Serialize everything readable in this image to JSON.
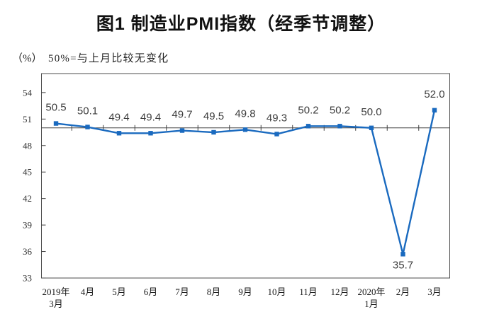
{
  "title": "图1 制造业PMI指数（经季节调整）",
  "unit_label": "（%）",
  "note": "50%=与上月比较无变化",
  "chart_data": {
    "type": "line",
    "title": "图1 制造业PMI指数（经季节调整）",
    "ylabel": "（%）",
    "annotation": "50%=与上月比较无变化",
    "categories": [
      "2019年3月",
      "4月",
      "5月",
      "6月",
      "7月",
      "8月",
      "9月",
      "10月",
      "11月",
      "12月",
      "2020年1月",
      "2月",
      "3月"
    ],
    "category_label_lines": [
      [
        "2019年",
        "3月"
      ],
      [
        "4月"
      ],
      [
        "5月"
      ],
      [
        "6月"
      ],
      [
        "7月"
      ],
      [
        "8月"
      ],
      [
        "9月"
      ],
      [
        "10月"
      ],
      [
        "11月"
      ],
      [
        "12月"
      ],
      [
        "2020年",
        "1月"
      ],
      [
        "2月"
      ],
      [
        "3月"
      ]
    ],
    "values": [
      50.5,
      50.1,
      49.4,
      49.4,
      49.7,
      49.5,
      49.8,
      49.3,
      50.2,
      50.2,
      50.0,
      35.7,
      52.0
    ],
    "yticks": [
      33,
      36,
      39,
      42,
      45,
      48,
      51,
      54
    ],
    "ylim": [
      33,
      56
    ],
    "reference_line": 50,
    "grid": false,
    "legend": false,
    "line_color": "#1a6abf",
    "axis_color": "#4d4d4d",
    "text_color": "#3d3d3d"
  }
}
